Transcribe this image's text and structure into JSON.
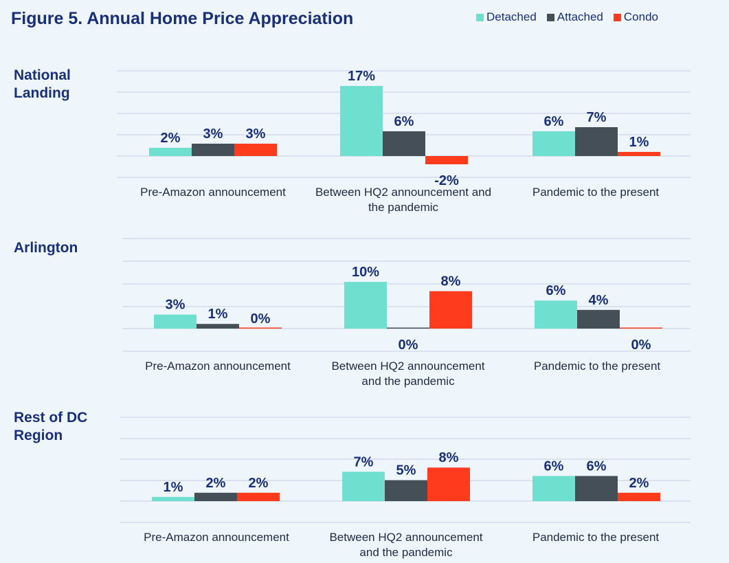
{
  "title": "Figure 5. Annual Home Price Appreciation",
  "colors": {
    "Detached": "#6fdfd0",
    "Attached": "#454f58",
    "Condo": "#ff3b1e",
    "text": "#1a2f7a",
    "grid": "#c5cfe4"
  },
  "chart_data": [
    {
      "type": "bar",
      "title": "National\nLanding",
      "categories": [
        "Pre-Amazon announcement",
        "Between HQ2 announcement and\nthe pandemic",
        "Pandemic to the present"
      ],
      "series": [
        {
          "name": "Detached",
          "values": [
            2,
            17,
            6
          ],
          "labels": [
            "2%",
            "17%",
            "6%"
          ]
        },
        {
          "name": "Attached",
          "values": [
            3,
            6,
            7
          ],
          "labels": [
            "3%",
            "6%",
            "7%"
          ]
        },
        {
          "name": "Condo",
          "values": [
            3,
            -2,
            1
          ],
          "labels": [
            "3%",
            "-2%",
            "1%"
          ]
        }
      ],
      "ylim": [
        -5,
        20
      ],
      "grid": true,
      "legend": "top-right"
    },
    {
      "type": "bar",
      "title": "Arlington",
      "categories": [
        "Pre-Amazon announcement",
        "Between HQ2 announcement\nand the pandemic",
        "Pandemic to the present"
      ],
      "series": [
        {
          "name": "Detached",
          "values": [
            3,
            10,
            6
          ],
          "labels": [
            "3%",
            "10%",
            "6%"
          ]
        },
        {
          "name": "Attached",
          "values": [
            1,
            0,
            4
          ],
          "labels": [
            "1%",
            "0%",
            "4%"
          ]
        },
        {
          "name": "Condo",
          "values": [
            0,
            8,
            0
          ],
          "labels": [
            "0%",
            "8%",
            "0%"
          ]
        }
      ],
      "ylim": [
        -5,
        15
      ],
      "grid": true
    },
    {
      "type": "bar",
      "title": "Rest of DC\nRegion",
      "categories": [
        "Pre-Amazon announcement",
        "Between HQ2 announcement\nand the pandemic",
        "Pandemic to the present"
      ],
      "series": [
        {
          "name": "Detached",
          "values": [
            1,
            7,
            6
          ],
          "labels": [
            "1%",
            "7%",
            "6%"
          ]
        },
        {
          "name": "Attached",
          "values": [
            2,
            5,
            6
          ],
          "labels": [
            "2%",
            "5%",
            "6%"
          ]
        },
        {
          "name": "Condo",
          "values": [
            2,
            8,
            2
          ],
          "labels": [
            "2%",
            "8%",
            "2%"
          ]
        }
      ],
      "ylim": [
        -5,
        15
      ],
      "grid": true
    }
  ]
}
